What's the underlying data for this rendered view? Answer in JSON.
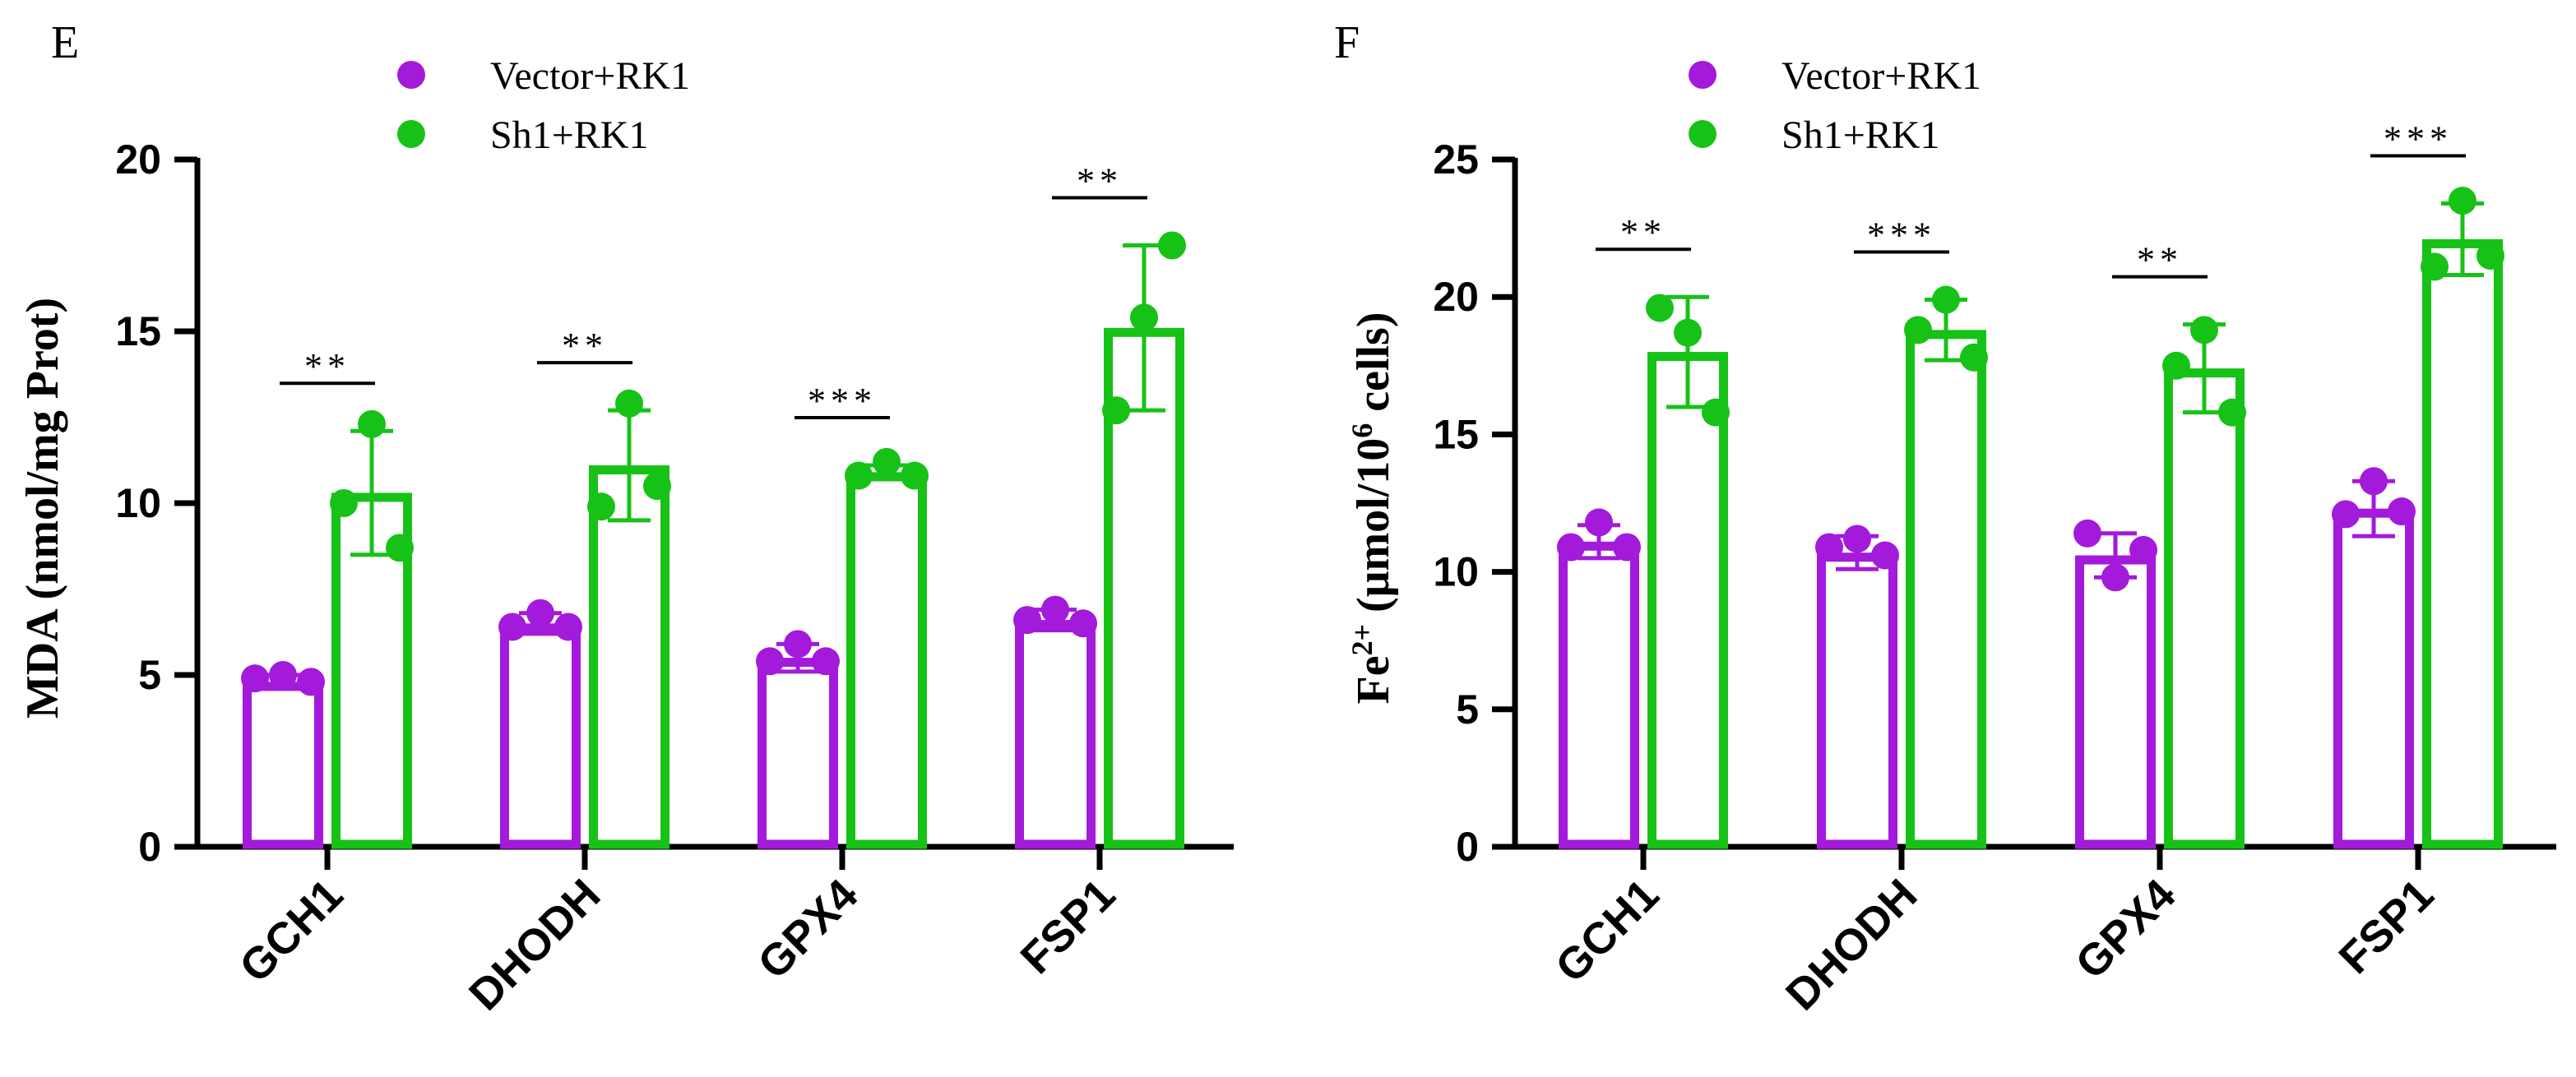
{
  "chart_data": [
    {
      "panel_label": "E",
      "type": "bar",
      "categories": [
        "GCH1",
        "DHODH",
        "GPX4",
        "FSP1"
      ],
      "ylabel": "MDA (nmol/mg Prot)",
      "ylim": [
        0,
        20
      ],
      "yticks": [
        0,
        5,
        10,
        15,
        20
      ],
      "legend_position": "top",
      "series": [
        {
          "name": "Vector+RK1",
          "color": "#a31adb",
          "values": [
            4.8,
            6.5,
            5.5,
            6.6
          ],
          "errors": [
            0.2,
            0.3,
            0.4,
            0.3
          ],
          "points": [
            [
              4.9,
              5.0,
              4.8
            ],
            [
              6.4,
              6.8,
              6.4
            ],
            [
              5.4,
              5.9,
              5.4
            ],
            [
              6.6,
              6.9,
              6.5
            ]
          ]
        },
        {
          "name": "Sh1+RK1",
          "color": "#17c217",
          "values": [
            10.3,
            11.1,
            10.9,
            15.1
          ],
          "errors": [
            1.8,
            1.6,
            0.2,
            2.4
          ],
          "points": [
            [
              10.0,
              12.3,
              8.7
            ],
            [
              9.9,
              12.9,
              10.5
            ],
            [
              10.8,
              11.2,
              10.8
            ],
            [
              12.7,
              15.4,
              17.5
            ]
          ]
        }
      ],
      "significance": [
        "**",
        "**",
        "***",
        "**"
      ]
    },
    {
      "panel_label": "F",
      "type": "bar",
      "categories": [
        "GCH1",
        "DHODH",
        "GPX4",
        "FSP1"
      ],
      "ylabel": "Fe2+ (μmol/106 cells)",
      "ylabel_parts": {
        "main1": "Fe",
        "sup1": "2+",
        "main2": " (μmol/10",
        "sup2": "6",
        "main3": " cells)"
      },
      "ylim": [
        0,
        25
      ],
      "yticks": [
        0,
        5,
        10,
        15,
        20,
        25
      ],
      "legend_position": "top",
      "series": [
        {
          "name": "Vector+RK1",
          "color": "#a31adb",
          "values": [
            11.1,
            10.7,
            10.6,
            12.3
          ],
          "errors": [
            0.6,
            0.6,
            0.8,
            1.0
          ],
          "points": [
            [
              10.9,
              11.8,
              10.9
            ],
            [
              10.9,
              11.2,
              10.6
            ],
            [
              11.4,
              9.8,
              10.8
            ],
            [
              12.1,
              13.3,
              12.2
            ]
          ]
        },
        {
          "name": "Sh1+RK1",
          "color": "#17c217",
          "values": [
            18.0,
            18.8,
            17.4,
            22.1
          ],
          "errors": [
            2.0,
            1.1,
            1.6,
            1.3
          ],
          "points": [
            [
              19.6,
              18.7,
              15.8
            ],
            [
              18.8,
              19.9,
              17.8
            ],
            [
              17.5,
              18.8,
              15.8
            ],
            [
              21.1,
              23.5,
              21.5
            ]
          ]
        }
      ],
      "significance": [
        "**",
        "***",
        "**",
        "***"
      ]
    }
  ]
}
